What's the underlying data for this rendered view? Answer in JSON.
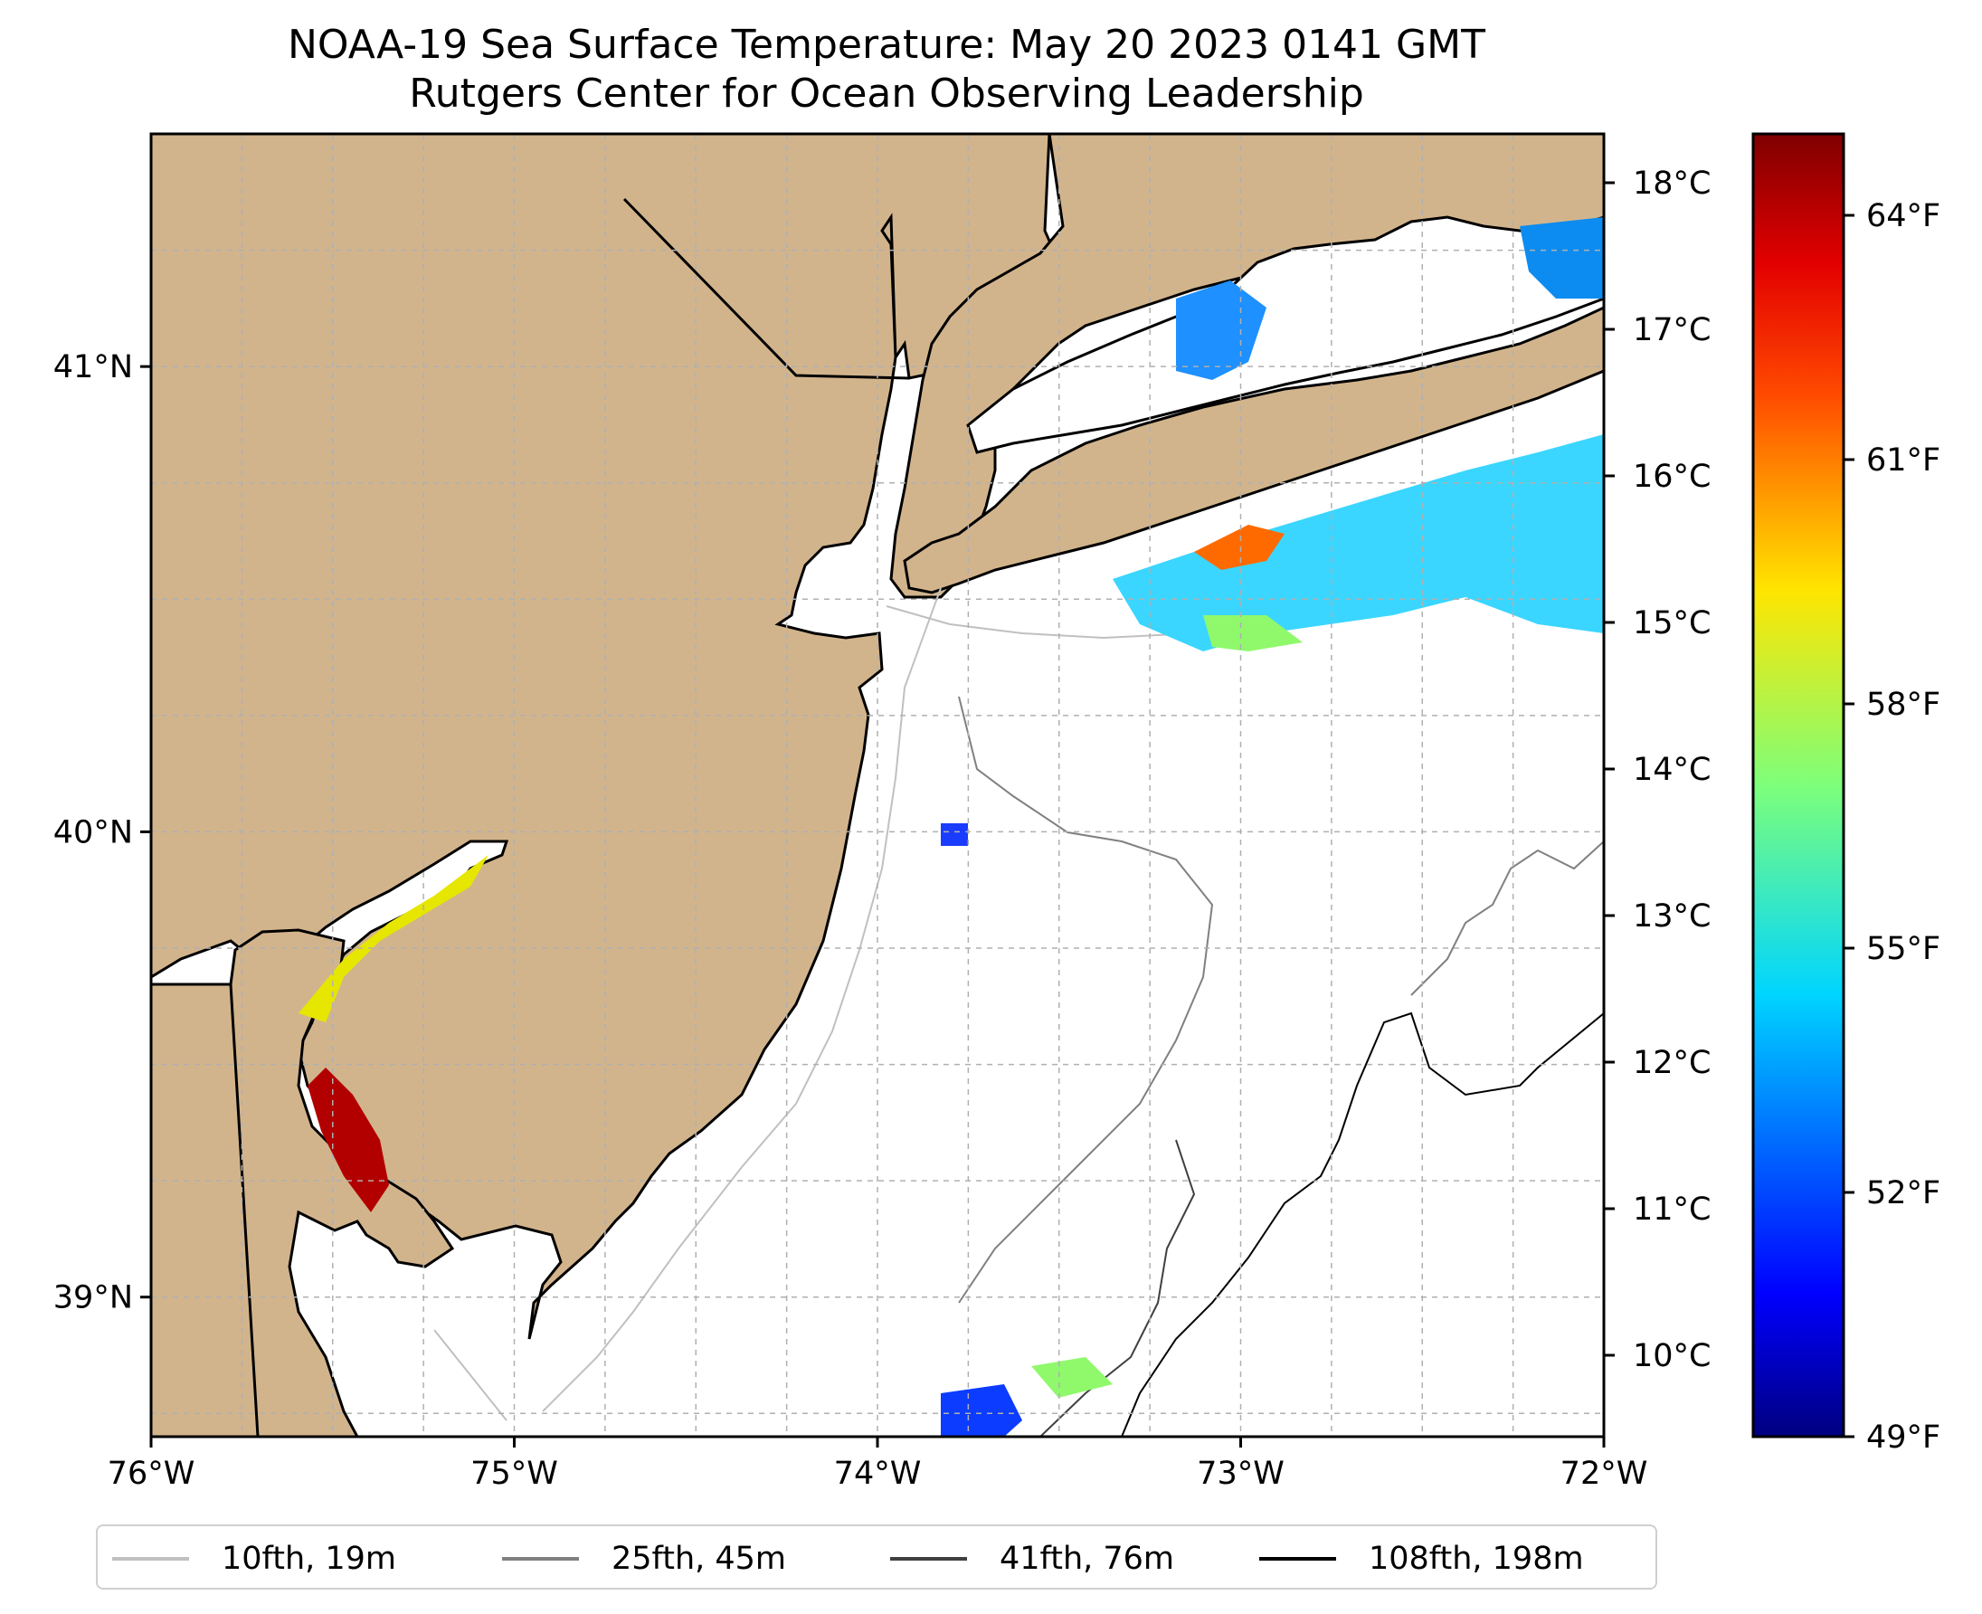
{
  "title": {
    "line1": "NOAA-19 Sea Surface Temperature: May 20 2023 0141 GMT",
    "line2": "Rutgers Center for Ocean Observing Leadership"
  },
  "map": {
    "lon_range": [
      -76,
      -72
    ],
    "lat_range": [
      38.7,
      41.5
    ],
    "land_color": "#d2b48c",
    "water_color": "#ffffff",
    "grid": true,
    "x_ticks": [
      {
        "value": -76,
        "label": "76°W"
      },
      {
        "value": -75,
        "label": "75°W"
      },
      {
        "value": -74,
        "label": "74°W"
      },
      {
        "value": -73,
        "label": "73°W"
      },
      {
        "value": -72,
        "label": "72°W"
      }
    ],
    "y_ticks": [
      {
        "value": 41,
        "label": "41°N"
      },
      {
        "value": 40,
        "label": "40°N"
      },
      {
        "value": 39,
        "label": "39°N"
      }
    ]
  },
  "colorbar": {
    "colormap": "jet",
    "celsius_ticks": [
      {
        "value": 10,
        "label": "10°C"
      },
      {
        "value": 11,
        "label": "11°C"
      },
      {
        "value": 12,
        "label": "12°C"
      },
      {
        "value": 13,
        "label": "13°C"
      },
      {
        "value": 14,
        "label": "14°C"
      },
      {
        "value": 15,
        "label": "15°C"
      },
      {
        "value": 16,
        "label": "16°C"
      },
      {
        "value": 17,
        "label": "17°C"
      },
      {
        "value": 18,
        "label": "18°C"
      }
    ],
    "fahrenheit_ticks": [
      {
        "value": 49,
        "label": "49°F"
      },
      {
        "value": 52,
        "label": "52°F"
      },
      {
        "value": 55,
        "label": "55°F"
      },
      {
        "value": 58,
        "label": "58°F"
      },
      {
        "value": 61,
        "label": "61°F"
      },
      {
        "value": 64,
        "label": "64°F"
      }
    ],
    "range_f": [
      49,
      65
    ]
  },
  "legend": [
    {
      "label": "10fth, 19m",
      "color": "#c0c0c0"
    },
    {
      "label": "25fth, 45m",
      "color": "#808080"
    },
    {
      "label": "41fth, 76m",
      "color": "#404040"
    },
    {
      "label": "108fth, 198m",
      "color": "#000000"
    }
  ]
}
